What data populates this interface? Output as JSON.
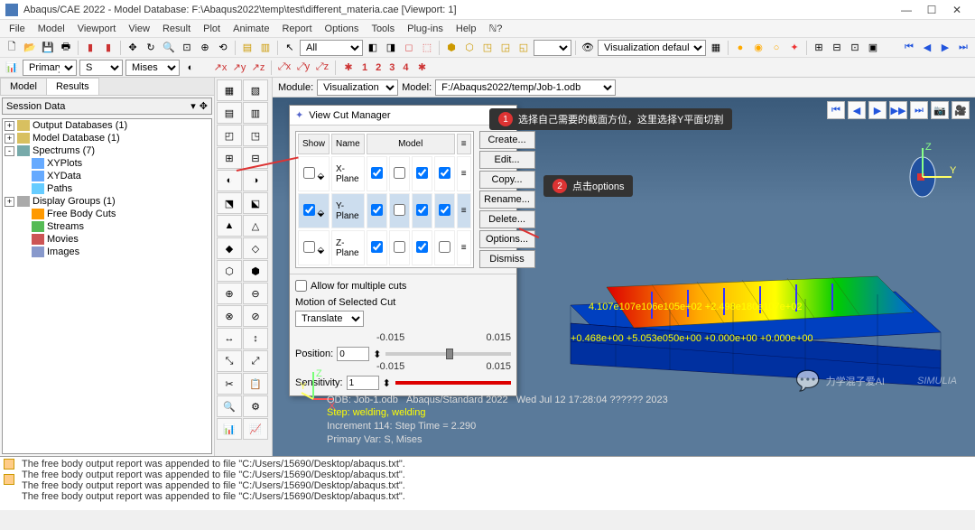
{
  "window": {
    "title": "Abaqus/CAE 2022 - Model Database: F:\\Abaqus2022\\temp\\test\\different_materia.cae [Viewport: 1]"
  },
  "menu": {
    "items": [
      "File",
      "Model",
      "Viewport",
      "View",
      "Result",
      "Plot",
      "Animate",
      "Report",
      "Options",
      "Tools",
      "Plug-ins",
      "Help"
    ]
  },
  "toolbar1": {
    "combo": "All"
  },
  "toolbar2": {
    "primary_label": "Primary",
    "s_label": "S",
    "mises_label": "Mises"
  },
  "coord_toolbar": {
    "labels": [
      "x",
      "y",
      "z",
      "x",
      "y",
      "z",
      "1",
      "2",
      "3",
      "4"
    ]
  },
  "left": {
    "tabs": [
      "Model",
      "Results"
    ],
    "active_tab": 1,
    "session_label": "Session Data",
    "tree": [
      {
        "exp": "+",
        "icon": "#d8c060",
        "label": "Output Databases (1)"
      },
      {
        "exp": "+",
        "icon": "#d8c060",
        "label": "Model Database (1)"
      },
      {
        "exp": "-",
        "icon": "#7aa",
        "label": "Spectrums (7)"
      },
      {
        "exp": "",
        "icon": "#6af",
        "label": "XYPlots",
        "ind": 1
      },
      {
        "exp": "",
        "icon": "#6af",
        "label": "XYData",
        "ind": 1
      },
      {
        "exp": "",
        "icon": "#6cf",
        "label": "Paths",
        "ind": 1
      },
      {
        "exp": "+",
        "icon": "#aaa",
        "label": "Display Groups (1)"
      },
      {
        "exp": "",
        "icon": "#f90",
        "label": "Free Body Cuts",
        "ind": 1
      },
      {
        "exp": "",
        "icon": "#5b5",
        "label": "Streams",
        "ind": 1
      },
      {
        "exp": "",
        "icon": "#c55",
        "label": "Movies",
        "ind": 1
      },
      {
        "exp": "",
        "icon": "#89c",
        "label": "Images",
        "ind": 1
      }
    ]
  },
  "module_bar": {
    "module_label": "Module:",
    "module_value": "Visualization",
    "model_label": "Model:",
    "model_value": "F:/Abaqus2022/temp/Job-1.odb"
  },
  "vcm": {
    "title": "View Cut Manager",
    "cols": {
      "show": "Show",
      "name": "Name",
      "model": "Model"
    },
    "rows": [
      {
        "show": false,
        "name": "X-Plane",
        "m": [
          true,
          false,
          true,
          true
        ]
      },
      {
        "show": true,
        "name": "Y-Plane",
        "m": [
          true,
          false,
          true,
          true
        ],
        "sel": true
      },
      {
        "show": false,
        "name": "Z-Plane",
        "m": [
          true,
          false,
          true,
          false
        ]
      }
    ],
    "buttons": [
      "Create...",
      "Edit...",
      "Copy...",
      "Rename...",
      "Delete...",
      "Options...",
      "Dismiss"
    ],
    "allow_label": "Allow for multiple cuts",
    "motion_label": "Motion of Selected Cut",
    "translate": "Translate",
    "position_label": "Position:",
    "position_value": "0",
    "sensitivity_label": "Sensitivity:",
    "sensitivity_value": "1",
    "lim_lo": "-0.015",
    "lim_hi": "0.015"
  },
  "annot1": {
    "text": "选择自己需要的截面方位，这里选择Y平面切割"
  },
  "annot2": {
    "text": "点击options"
  },
  "viewport_text": {
    "l1a": "ODB: Job-1.odb",
    "l1b": "Abaqus/Standard 2022",
    "l1c": "Wed Jul 12 17:28:04 ?????? 2023",
    "l2": "Step: welding, welding",
    "l3": "Increment   114: Step Time =   2.290",
    "l4": "Primary Var: S, Mises"
  },
  "log": {
    "line": "The free body output report was appended to file \"C:/Users/15690/Desktop/abaqus.txt\"."
  },
  "watermark": {
    "text": "力学混子爱AI"
  },
  "playback": {
    "labels": [
      "⏮",
      "◀",
      "▶",
      "⏭"
    ]
  }
}
